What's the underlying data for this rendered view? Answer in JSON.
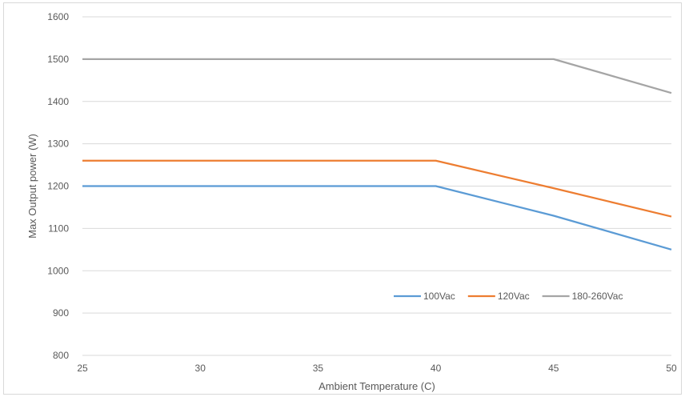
{
  "chart_data": {
    "type": "line",
    "title": "",
    "xlabel": "Ambient Temperature (C)",
    "ylabel": "Max Output power (W)",
    "xlim": [
      25,
      50
    ],
    "ylim": [
      800,
      1600
    ],
    "x_ticks": [
      25,
      30,
      35,
      40,
      45,
      50
    ],
    "y_ticks": [
      800,
      900,
      1000,
      1100,
      1200,
      1300,
      1400,
      1500,
      1600
    ],
    "grid": "horizontal",
    "legend_position": "bottom-right inside",
    "series": [
      {
        "name": "100Vac",
        "color": "#5b9bd5",
        "x": [
          25,
          40,
          45,
          50
        ],
        "y": [
          1200,
          1200,
          1130,
          1050
        ]
      },
      {
        "name": "120Vac",
        "color": "#ed7d31",
        "x": [
          25,
          40,
          45,
          50
        ],
        "y": [
          1260,
          1260,
          1195,
          1128
        ]
      },
      {
        "name": "180-260Vac",
        "color": "#a5a5a5",
        "x": [
          25,
          45,
          50
        ],
        "y": [
          1500,
          1500,
          1420
        ]
      }
    ]
  }
}
